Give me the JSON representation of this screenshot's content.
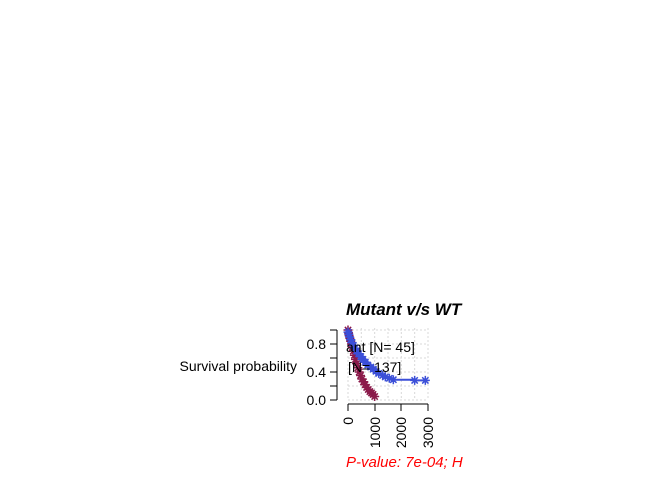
{
  "chart_data": {
    "type": "line",
    "title": "Mutant v/s WT",
    "ylabel": "Survival probability",
    "xlabel": "",
    "xlim": [
      0,
      3000
    ],
    "ylim": [
      0,
      1
    ],
    "x_ticks": [
      "0",
      "1000",
      "2000",
      "3000"
    ],
    "y_ticks": [
      "0.0",
      "0.4",
      "0.8"
    ],
    "grid": true,
    "legend_position": "top-left",
    "legend_entries": [
      "ant [N= 45]",
      "[N= 137]"
    ],
    "annotation": "P-value: 7e-04; H",
    "annotation_color": "#ff0000",
    "series": [
      {
        "color": "#8b1a4a",
        "marker": "asterisk",
        "x": [
          0,
          20,
          40,
          70,
          100,
          130,
          160,
          200,
          240,
          280,
          320,
          370,
          420,
          470,
          520,
          580,
          640,
          700,
          760,
          820,
          880,
          940,
          1000
        ],
        "y": [
          1.0,
          0.96,
          0.92,
          0.88,
          0.84,
          0.8,
          0.75,
          0.7,
          0.64,
          0.58,
          0.52,
          0.46,
          0.4,
          0.35,
          0.3,
          0.26,
          0.22,
          0.18,
          0.15,
          0.12,
          0.1,
          0.08,
          0.05
        ]
      },
      {
        "color": "#3b4fd8",
        "marker": "asterisk",
        "x": [
          0,
          30,
          60,
          100,
          150,
          200,
          260,
          320,
          400,
          480,
          560,
          650,
          740,
          850,
          950,
          1050,
          1150,
          1300,
          1400,
          1550,
          1700,
          2500,
          2900
        ],
        "y": [
          0.97,
          0.94,
          0.9,
          0.86,
          0.82,
          0.78,
          0.74,
          0.7,
          0.66,
          0.62,
          0.58,
          0.54,
          0.5,
          0.47,
          0.44,
          0.41,
          0.38,
          0.35,
          0.33,
          0.31,
          0.29,
          0.28,
          0.28
        ]
      }
    ]
  }
}
